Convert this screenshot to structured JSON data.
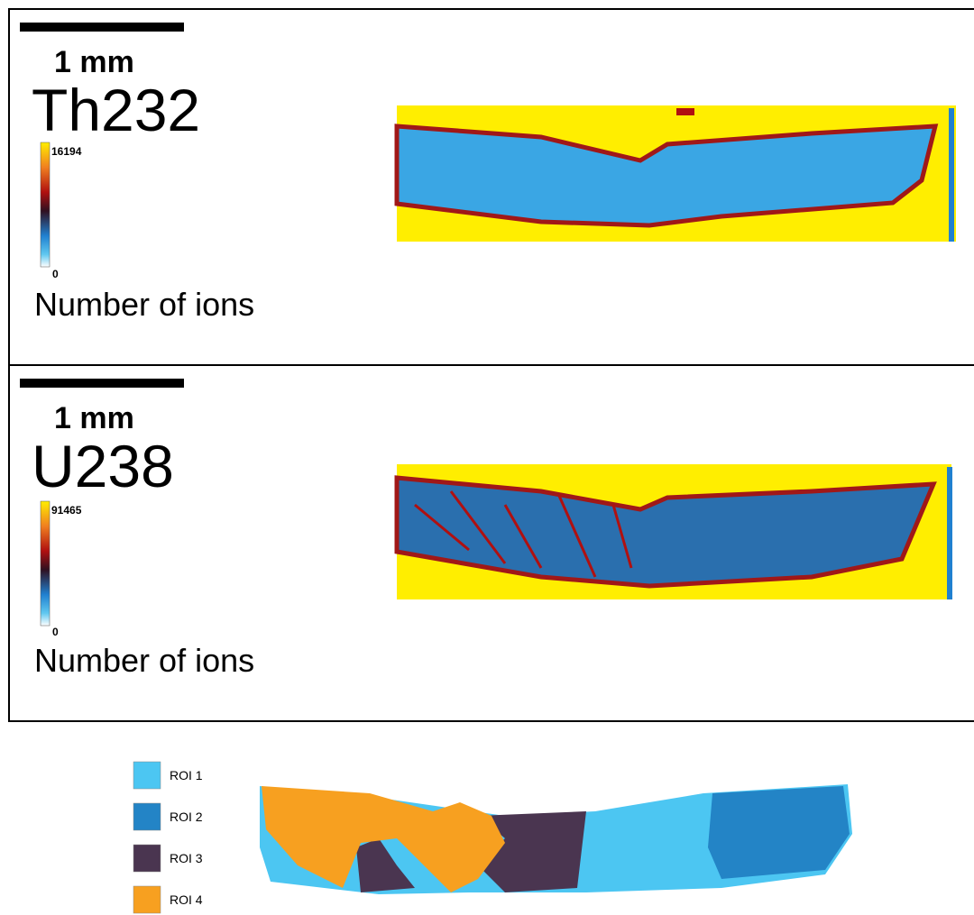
{
  "panels": [
    {
      "scale_bar": "1 mm",
      "element": "Th232",
      "colorbar": {
        "max": 16194,
        "min": 0,
        "label": "Number of ions"
      }
    },
    {
      "scale_bar": "1 mm",
      "element": "U238",
      "colorbar": {
        "max": 91465,
        "min": 0,
        "label": "Number of ions"
      }
    }
  ],
  "rois": [
    {
      "label": "ROI 1",
      "color": "#4cc6f2"
    },
    {
      "label": "ROI 2",
      "color": "#2384c6"
    },
    {
      "label": "ROI 3",
      "color": "#4a3550"
    },
    {
      "label": "ROI 4",
      "color": "#f7a020"
    }
  ]
}
